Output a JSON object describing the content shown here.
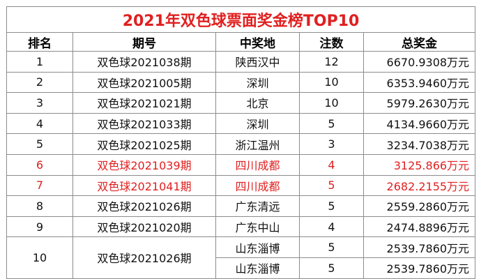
{
  "title": "2021年双色球票面奖金榜TOP10",
  "headers": {
    "rank": "排名",
    "issue": "期号",
    "location": "中奖地",
    "bets": "注数",
    "prize": "总奖金"
  },
  "rows": [
    {
      "rank": "1",
      "issue": "双色球2021038期",
      "location": "陕西汉中",
      "bets": "12",
      "prize": "6670.9308万元",
      "highlight": false
    },
    {
      "rank": "2",
      "issue": "双色球2021005期",
      "location": "深圳",
      "bets": "10",
      "prize": "6353.9460万元",
      "highlight": false
    },
    {
      "rank": "3",
      "issue": "双色球2021021期",
      "location": "北京",
      "bets": "10",
      "prize": "5979.2630万元",
      "highlight": false
    },
    {
      "rank": "4",
      "issue": "双色球2021033期",
      "location": "深圳",
      "bets": "5",
      "prize": "4134.9660万元",
      "highlight": false
    },
    {
      "rank": "5",
      "issue": "双色球2021025期",
      "location": "浙江温州",
      "bets": "3",
      "prize": "3234.7038万元",
      "highlight": false
    },
    {
      "rank": "6",
      "issue": "双色球2021039期",
      "location": "四川成都",
      "bets": "4",
      "prize": "3125.866万元",
      "highlight": true
    },
    {
      "rank": "7",
      "issue": "双色球2021041期",
      "location": "四川成都",
      "bets": "5",
      "prize": "2682.2155万元",
      "highlight": true
    },
    {
      "rank": "8",
      "issue": "双色球2021026期",
      "location": "广东清远",
      "bets": "5",
      "prize": "2559.2860万元",
      "highlight": false
    },
    {
      "rank": "9",
      "issue": "双色球2021020期",
      "location": "广东中山",
      "bets": "4",
      "prize": "2474.8896万元",
      "highlight": false
    }
  ],
  "row10": {
    "rank": "10",
    "issue": "双色球2021026期",
    "sub": [
      {
        "location": "山东淄博",
        "bets": "5",
        "prize": "2539.7860万元"
      },
      {
        "location": "山东淄博",
        "bets": "5",
        "prize": "2539.7860万元"
      }
    ]
  },
  "colors": {
    "title": "#e11f1f",
    "highlight": "#e11f1f",
    "border": "#8c8c8c",
    "text": "#111111"
  }
}
